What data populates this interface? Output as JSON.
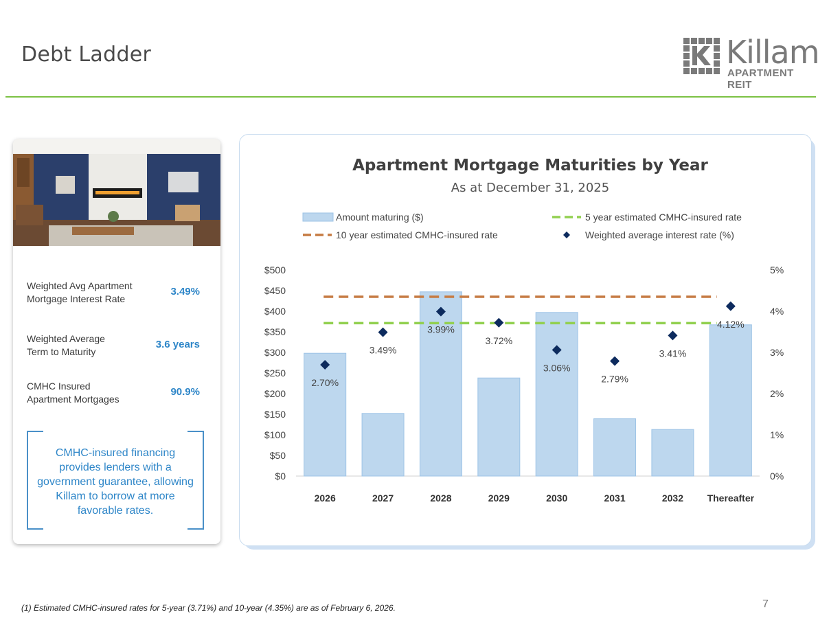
{
  "page": {
    "title": "Debt Ladder",
    "page_number": "7",
    "accent_color": "#7bc143"
  },
  "logo": {
    "word": "Killam",
    "sub": "APARTMENT REIT"
  },
  "stats": [
    {
      "label": "Weighted Avg Apartment Mortgage Interest Rate",
      "value": "3.49%"
    },
    {
      "label": "Weighted Average Term to Maturity",
      "value": "3.6 years"
    },
    {
      "label": "CMHC Insured Apartment Mortgages",
      "value": "90.9%"
    }
  ],
  "callout": "CMHC-insured financing provides lenders with a government guarantee, allowing Killam to borrow at more favorable rates.",
  "footnote": "(1) Estimated CMHC-insured rates for 5-year (3.71%) and 10-year (4.35%) are as of February 6, 2026.",
  "chart_data": {
    "type": "bar",
    "title": "Apartment Mortgage Maturities by Year",
    "subtitle": "As at December 31, 2025",
    "categories": [
      "2026",
      "2027",
      "2028",
      "2029",
      "2030",
      "2031",
      "2032",
      "Thereafter"
    ],
    "series": [
      {
        "name": "Amount maturing ($)",
        "type": "bar",
        "axis": "left",
        "color": "#bdd7ee",
        "values": [
          298,
          152,
          447,
          238,
          397,
          139,
          113,
          367
        ]
      },
      {
        "name": "5 year estimated CMHC-insured rate",
        "type": "line",
        "axis": "right",
        "color": "#92d050",
        "dash": true,
        "value": 3.71
      },
      {
        "name": "10 year estimated CMHC-insured rate",
        "type": "line",
        "axis": "right",
        "color": "#c67b43",
        "dash": true,
        "value": 4.35
      },
      {
        "name": "Weighted average interest rate (%)",
        "type": "scatter",
        "axis": "right",
        "color": "#0d2b5e",
        "values": [
          2.7,
          3.49,
          3.99,
          3.72,
          3.06,
          2.79,
          3.41,
          4.12
        ],
        "labels": [
          "2.70%",
          "3.49%",
          "3.99%",
          "3.72%",
          "3.06%",
          "2.79%",
          "3.41%",
          "4.12%"
        ]
      }
    ],
    "y_left": {
      "ylim": [
        0,
        500
      ],
      "ticks": [
        "$0",
        "$50",
        "$100",
        "$150",
        "$200",
        "$250",
        "$300",
        "$350",
        "$400",
        "$450",
        "$500"
      ]
    },
    "y_right": {
      "ylim": [
        0,
        5
      ],
      "ticks": [
        "0%",
        "1%",
        "2%",
        "3%",
        "4%",
        "5%"
      ]
    },
    "legend_position": "top",
    "grid": false
  }
}
